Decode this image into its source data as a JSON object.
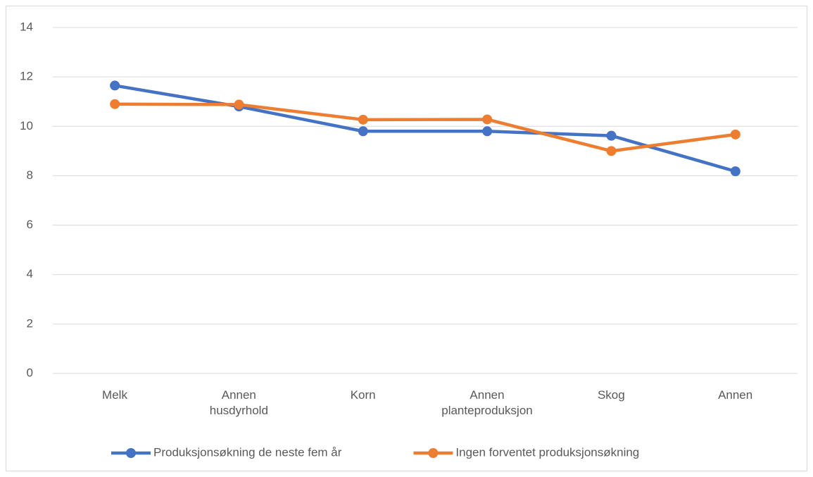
{
  "chart_data": {
    "type": "line",
    "categories": [
      "Melk",
      "Annen\nhusdyrhold",
      "Korn",
      "Annen\nplanteproduksjon",
      "Skog",
      "Annen"
    ],
    "series": [
      {
        "name": "Produksjonsøkning de neste fem år",
        "color": "#4472c4",
        "values": [
          11.65,
          10.8,
          9.8,
          9.8,
          9.62,
          8.18
        ]
      },
      {
        "name": "Ingen forventet produksjonsøkning",
        "color": "#ed7d31",
        "values": [
          10.9,
          10.88,
          10.27,
          10.28,
          9.0,
          9.67
        ]
      }
    ],
    "ylim": [
      0,
      14
    ],
    "yticks": [
      0,
      2,
      4,
      6,
      8,
      10,
      12,
      14
    ],
    "grid": true,
    "legend": "bottom"
  }
}
